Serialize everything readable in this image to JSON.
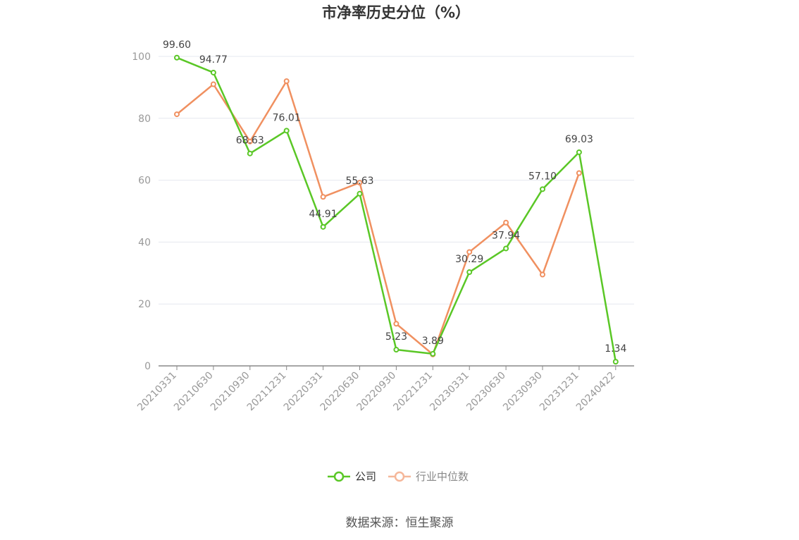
{
  "chart_data": {
    "type": "line",
    "title": "市净率历史分位（%）",
    "categories": [
      "20210331",
      "20210630",
      "20210930",
      "20211231",
      "20220331",
      "20220630",
      "20220930",
      "20221231",
      "20230331",
      "20230630",
      "20230930",
      "20231231",
      "20240422"
    ],
    "series": [
      {
        "name": "公司",
        "color": "#5ac726",
        "values": [
          99.6,
          94.77,
          68.63,
          76.01,
          44.91,
          55.63,
          5.23,
          3.89,
          30.29,
          37.94,
          57.1,
          69.03,
          1.34
        ],
        "labels": [
          "99.60",
          "94.77",
          "68.63",
          "76.01",
          "44.91",
          "55.63",
          "5.23",
          "3.89",
          "30.29",
          "37.94",
          "57.10",
          "69.03",
          "1.34"
        ]
      },
      {
        "name": "行业中位数",
        "color": "#f09060",
        "values": [
          81.3,
          91.0,
          72.5,
          92.0,
          54.6,
          59.2,
          13.6,
          3.7,
          36.8,
          46.3,
          29.5,
          62.3,
          null
        ]
      }
    ],
    "ylim": [
      0,
      100
    ],
    "yticks": [
      "0",
      "20",
      "40",
      "60",
      "80",
      "100"
    ],
    "grid": true,
    "legend": "bottom-center"
  },
  "source": "数据来源：恒生聚源"
}
